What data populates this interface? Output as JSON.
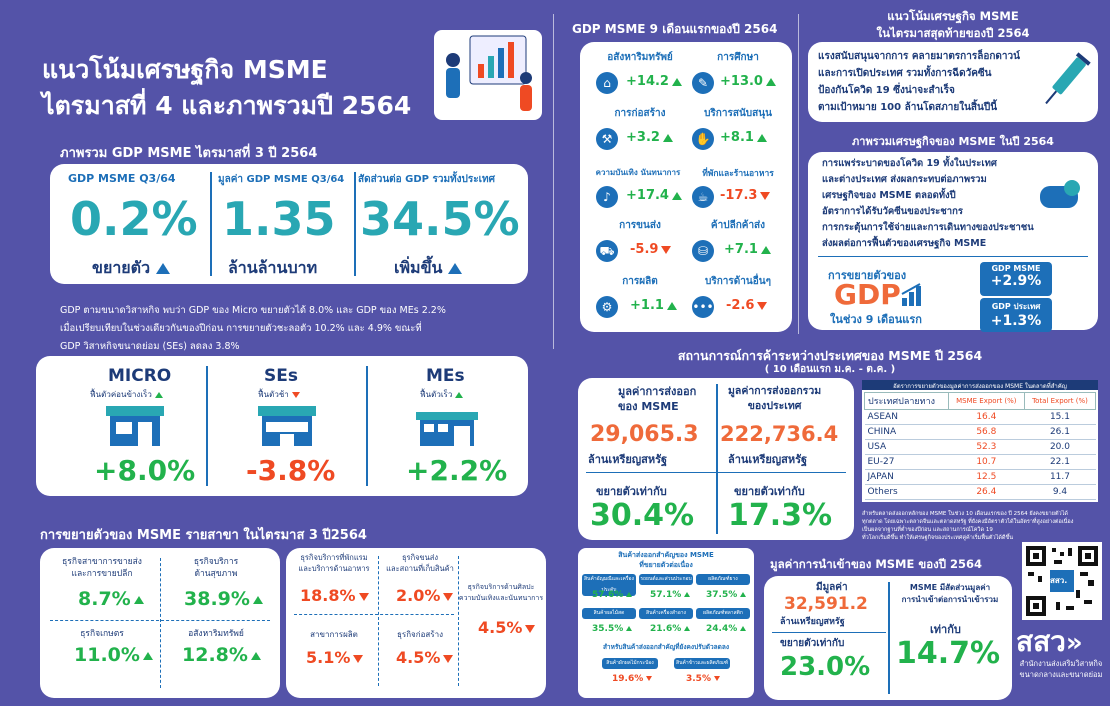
{
  "title": {
    "line1": "แนวโน้มเศรษฐกิจ MSME",
    "line2": "ไตรมาสที่ 4 และภาพรวมปี 2564"
  },
  "q3": {
    "header": "ภาพรวม GDP MSME ไตรมาสที่ 3 ปี 2564",
    "col1": {
      "label": "GDP MSME Q3/64",
      "value": "0.2%",
      "sub": "ขยายตัว"
    },
    "col2": {
      "label": "มูลค่า GDP MSME Q3/64",
      "value": "1.35",
      "sub": "ล้านล้านบาท"
    },
    "col3": {
      "label": "สัดส่วนต่อ GDP รวมทั้งประเทศ",
      "value": "34.5%",
      "sub": "เพิ่มขึ้น"
    }
  },
  "desc": [
    "GDP ตามขนาดวิสาหกิจ พบว่า GDP ของ Micro ขยายตัวได้ 8.0% และ GDP ของ MEs 2.2%",
    "เมื่อเปรียบเทียบในช่วงเดียวกันของปีก่อน การขยายตัวชะลอตัว 10.2% และ 4.9% ขณะที่",
    "GDP วิสาหกิจขนาดย่อม (SEs) ลดลง 3.8%"
  ],
  "size": [
    {
      "name": "MICRO",
      "sub": "ฟื้นตัวค่อนข้างเร็ว",
      "value": "+8.0%"
    },
    {
      "name": "SEs",
      "sub": "ฟื้นตัวช้า",
      "value": "-3.8%"
    },
    {
      "name": "MEs",
      "sub": "ฟื้นตัวเร็ว",
      "value": "+2.2%"
    }
  ],
  "branch": {
    "header": "การขยายตัวของ MSME รายสาขา ในไตรมาส 3 ปี2564",
    "items": [
      {
        "label1": "ธุรกิจสาขาการขายส่ง",
        "label2": "และการขายปลีก",
        "value": "8.7%"
      },
      {
        "label1": "ธุรกิจบริการ",
        "label2": "ด้านสุขภาพ",
        "value": "38.9%"
      },
      {
        "label1": "ธุรกิจเกษตร",
        "label2": "",
        "value": "11.0%"
      },
      {
        "label1": "อสังหาริมทรัพย์",
        "label2": "",
        "value": "12.8%"
      }
    ],
    "items2": [
      {
        "label1": "ธุรกิจบริการที่พักแรม",
        "label2": "และบริการด้านอาหาร",
        "value": "18.8%"
      },
      {
        "label1": "ธุรกิจขนส่ง",
        "label2": "และสถานที่เก็บสินค้า",
        "value": "2.0%"
      },
      {
        "label1": "ธุรกิจบริการด้านศิลปะ",
        "label2": "ความบันเทิงและนันทนาการ",
        "value": "4.5%"
      },
      {
        "label1": "สาขาการผลิต",
        "label2": "",
        "value": "5.1%"
      },
      {
        "label1": "ธุรกิจก่อสร้าง",
        "label2": "",
        "value": "4.5%"
      }
    ]
  },
  "nine": {
    "header": "GDP MSME 9 เดือนแรกของปี 2564",
    "items": [
      {
        "label": "อสังหาริมทรัพย์",
        "value": "+14.2",
        "dir": "up"
      },
      {
        "label": "การศึกษา",
        "value": "+13.0",
        "dir": "up"
      },
      {
        "label": "การก่อสร้าง",
        "value": "+3.2",
        "dir": "up"
      },
      {
        "label": "บริการสนับสนุน",
        "value": "+8.1",
        "dir": "up"
      },
      {
        "label": "ความบันเทิง นันทนาการ",
        "value": "+17.4",
        "dir": "up"
      },
      {
        "label": "ที่พักและร้านอาหาร",
        "value": "-17.3",
        "dir": "down"
      },
      {
        "label": "การขนส่ง",
        "value": "-5.9",
        "dir": "down"
      },
      {
        "label": "ค้าปลีกค้าส่ง",
        "value": "+7.1",
        "dir": "up"
      },
      {
        "label": "การผลิต",
        "value": "+1.1",
        "dir": "up"
      },
      {
        "label": "บริการด้านอื่นๆ",
        "value": "-2.6",
        "dir": "down"
      }
    ]
  },
  "trend": {
    "header1": "แนวโน้มเศรษฐกิจ MSME",
    "header2": "ในไตรมาสสุดท้ายของปี 2564",
    "lines": [
      "แรงสนับสนุนจากการ คลายมาตรการล็อกดาวน์",
      "และการเปิดประเทศ รวมทั้งการฉีดวัคซีน",
      "ป้องกันโควิด 19 ซึ่งน่าจะสำเร็จ",
      "ตามเป้าหมาย 100 ล้านโดสภายในสิ้นปีนี้"
    ]
  },
  "overview": {
    "header": "ภาพรวมเศรษฐกิจของ MSME ในปี 2564",
    "lines": [
      "การแพร่ระบาดของโควิด 19 ทั้งในประเทศ",
      "และต่างประเทศ ส่งผลกระทบต่อภาพรวม",
      "เศรษฐกิจของ MSME ตลอดทั้งปี",
      "อัตราการได้รับวัคซีนของประชากร",
      "การกระตุ้นการใช้จ่ายและการเดินทางของประชาชน",
      "ส่งผลต่อการฟื้นตัวของเศรษฐกิจ MSME"
    ],
    "growth_label": "การขยายตัวของ",
    "gdp": "GDP",
    "period": "ในช่วง 9 เดือนแรก",
    "msme_label": "GDP MSME",
    "msme_value": "+2.9%",
    "country_label": "GDP ประเทศ",
    "country_value": "+1.3%"
  },
  "trade": {
    "header": "สถานการณ์การค้าระหว่างประเทศของ MSME ปี 2564",
    "sub": "( 10 เดือนแรก ม.ค. - ต.ค. )",
    "export_label1": "มูลค่าการส่งออก",
    "export_label2": "ของ MSME",
    "export_value": "29,065.3",
    "export_unit": "ล้านเหรียญสหรัฐ",
    "export_growth_label": "ขยายตัวเท่ากับ",
    "export_growth": "30.4%",
    "total_label1": "มูลค่าการส่งออกรวม",
    "total_label2": "ของประเทศ",
    "total_value": "222,736.4",
    "total_unit": "ล้านเหรียญสหรัฐ",
    "total_growth_label": "ขยายตัวเท่ากับ",
    "total_growth": "17.3%",
    "table_title": "อัตราการขยายตัวของมูลค่าการส่งออกของ MSME ในตลาดที่สำคัญ",
    "table_headers": [
      "ประเทศปลายทาง",
      "MSME Export (%)",
      "Total Export (%)"
    ],
    "rows": [
      [
        "ASEAN",
        "16.4",
        "15.1"
      ],
      [
        "CHINA",
        "56.8",
        "26.1"
      ],
      [
        "USA",
        "52.3",
        "20.0"
      ],
      [
        "EU-27",
        "10.7",
        "22.1"
      ],
      [
        "JAPAN",
        "12.5",
        "11.7"
      ],
      [
        "Others",
        "26.4",
        "9.4"
      ]
    ],
    "note": [
      "สำหรับตลาดส่งออกหลักของ MSME ในช่วง 10 เดือนแรกของ ปี 2564 ยังคงขยายตัวได้",
      "ทุกตลาด โดยเฉพาะตลาดจีนและตลาดสหรัฐ ที่ยังคงมีอัตราตัวได้ในอัตราที่สูงอย่างต่อเนื่อง",
      "เป็นผลจากฐานที่ต่ำของปีก่อน และสถานการณ์โควิด 19",
      "ทั่วโลกเริ่มดีขึ้น ทำให้เศรษฐกิจของประเทศคู่ค้าเริ่มฟื้นตัวได้ดีขึ้น"
    ]
  },
  "products": {
    "header1": "สินค้าส่งออกสำคัญของ MSME",
    "header2": "ที่ขยายตัวต่อเนื่อง",
    "pills": [
      "สินค้าอัญมณีและเครื่องประดับ",
      "รถยนต์และส่วนประกอบ",
      "ผลิตภัณฑ์ยาง",
      "สินค้าผลไม้สด",
      "สินค้าเครื่องสำอาง",
      "ผลิตภัณฑ์พลาสติก"
    ],
    "values": [
      "57.6%",
      "57.1%",
      "37.5%",
      "35.5%",
      "21.6%",
      "24.4%"
    ],
    "header3": "สำหรับสินค้าส่งออกสำคัญที่ยังคงปรับตัวลดลง",
    "down_pills": [
      "สินค้าผักผลไม้กระป๋อง",
      "สินค้าข้าวและผลิตภัณฑ์"
    ],
    "down_values": [
      "19.6%",
      "3.5%"
    ]
  },
  "imports": {
    "header": "มูลค่าการนำเข้าของ MSME ของปี 2564",
    "label": "มีมูลค่า",
    "value": "32,591.2",
    "unit": "ล้านเหรียญสหรัฐ",
    "growth_label": "ขยายตัวเท่ากับ",
    "growth": "23.0%",
    "share1": "MSME มีสัดส่วนมูลค่า",
    "share2": "การนำเข้าต่อการนำเข้ารวม",
    "share_label": "เท่ากับ",
    "share": "14.7%"
  },
  "logo": {
    "qr_label": "สสว.",
    "brand": "สสว",
    "org1": "สำนักงานส่งเสริมวิสาหกิจ",
    "org2": "ขนาดกลางและขนาดย่อม"
  }
}
